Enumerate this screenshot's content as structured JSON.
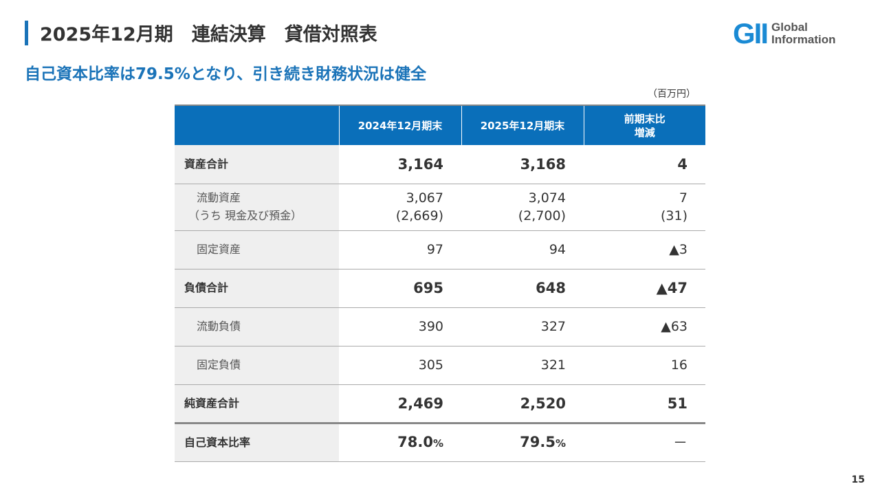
{
  "header": {
    "title": "2025年12月期　連結決算　貸借対照表",
    "subtitle": "自己資本比率は79.5%となり、引き続き財務状況は健全",
    "logo_mark": "GII",
    "logo_text_1": "Global",
    "logo_text_2": "Information"
  },
  "unit": "（百万円）",
  "table": {
    "columns": [
      "",
      "2024年12月期末",
      "2025年12月期末",
      "前期末比\n増減"
    ],
    "col3_line1": "前期末比",
    "col3_line2": "増減",
    "rows": [
      {
        "label": "資産合計",
        "v2024": "3,164",
        "v2025": "3,168",
        "diff": "4"
      },
      {
        "label": "流動資産",
        "label2": "（うち 現金及び預金）",
        "v2024": "3,067",
        "v2024b": "(2,669)",
        "v2025": "3,074",
        "v2025b": "(2,700)",
        "diff": "7",
        "diffb": "(31)"
      },
      {
        "label": "固定資産",
        "v2024": "97",
        "v2025": "94",
        "diff": "▲3"
      },
      {
        "label": "負債合計",
        "v2024": "695",
        "v2025": "648",
        "diff": "▲47"
      },
      {
        "label": "流動負債",
        "v2024": "390",
        "v2025": "327",
        "diff": "▲63"
      },
      {
        "label": "固定負債",
        "v2024": "305",
        "v2025": "321",
        "diff": "16"
      },
      {
        "label": "純資産合計",
        "v2024": "2,469",
        "v2025": "2,520",
        "diff": "51"
      },
      {
        "label": "自己資本比率",
        "v2024": "78.0",
        "v2025": "79.5",
        "pct": "%",
        "diff": "－"
      }
    ]
  },
  "page_number": "15",
  "colors": {
    "accent": "#1a73b8",
    "header_bg": "#0a6fba",
    "label_bg": "#efefef"
  }
}
